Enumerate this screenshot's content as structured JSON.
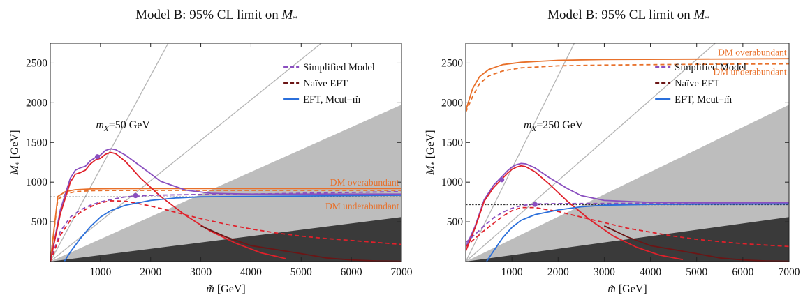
{
  "chart_data": [
    {
      "type": "line",
      "title": "Model B: 95% CL limit on M*",
      "xlabel": "m̃ [GeV]",
      "ylabel": "M* [GeV]",
      "xlim": [
        0,
        7000
      ],
      "ylim": [
        0,
        2750
      ],
      "xticks": [
        "1000",
        "2000",
        "3000",
        "4000",
        "5000",
        "6000",
        "7000"
      ],
      "yticks": [
        "500",
        "1000",
        "1500",
        "2000",
        "2500"
      ],
      "annotation": "mX=50 GeV",
      "legend_position": "top-right",
      "legend": [
        {
          "label": "Simplified Model",
          "color": "#8a4fbf",
          "style": "dashed"
        },
        {
          "label": "Naïve EFT",
          "color": "#6b1515",
          "style": "dashed"
        },
        {
          "label": "EFT, Mcut=m̃",
          "color": "#2a6fdb",
          "style": "solid"
        }
      ],
      "dm_labels": [
        "DM overabundant",
        "DM underabundant"
      ],
      "colors": {
        "purple": "#8a4fbf",
        "red": "#e0202a",
        "darkred": "#6b1515",
        "blue": "#2a6fdb",
        "orange": "#e8702a",
        "grey": "#bdbdbd",
        "dark": "#3a3a3a"
      },
      "grey_region": {
        "x": [
          0,
          7000
        ],
        "y_upper": [
          0,
          1975
        ]
      },
      "dark_region": {
        "x": [
          0,
          7000
        ],
        "y_upper": [
          0,
          560
        ]
      },
      "guide_lines": [
        {
          "x": [
            0,
            2350
          ],
          "y": [
            0,
            2750
          ]
        },
        {
          "x": [
            0,
            5400
          ],
          "y": [
            0,
            2750
          ]
        }
      ],
      "naive_eft_line": 815,
      "series": [
        {
          "key": "orange_solid",
          "color": "#e8702a",
          "dash": false,
          "x": [
            0,
            150,
            300,
            500,
            800,
            1200,
            2000,
            4000,
            7000
          ],
          "y": [
            0,
            820,
            880,
            905,
            915,
            918,
            920,
            920,
            920
          ]
        },
        {
          "key": "orange_dashed",
          "color": "#e8702a",
          "dash": true,
          "x": [
            0,
            150,
            300,
            500,
            800,
            1200,
            2000,
            4000,
            7000
          ],
          "y": [
            0,
            780,
            850,
            880,
            892,
            895,
            896,
            896,
            896
          ]
        },
        {
          "key": "purple_solid",
          "color": "#8a4fbf",
          "dash": false,
          "x": [
            0,
            200,
            400,
            500,
            600,
            700,
            800,
            900,
            1000,
            1100,
            1200,
            1300,
            1500,
            1800,
            2200,
            2700,
            3200,
            4000,
            5000,
            7000
          ],
          "y": [
            0,
            650,
            1050,
            1150,
            1180,
            1200,
            1270,
            1310,
            1340,
            1400,
            1420,
            1410,
            1340,
            1200,
            1010,
            900,
            860,
            850,
            850,
            850
          ]
        },
        {
          "key": "red_solid",
          "color": "#e0202a",
          "dash": false,
          "x": [
            0,
            200,
            400,
            500,
            600,
            700,
            800,
            900,
            1000,
            1100,
            1200,
            1300,
            1500,
            1800,
            2200,
            2700,
            3200,
            3700,
            4200,
            4700
          ],
          "y": [
            0,
            600,
            1000,
            1100,
            1120,
            1150,
            1230,
            1280,
            1300,
            1350,
            1375,
            1360,
            1260,
            1050,
            820,
            580,
            380,
            230,
            110,
            35
          ]
        },
        {
          "key": "darkred_solid",
          "color": "#6b1515",
          "dash": false,
          "x": [
            3000,
            3500,
            4000,
            4500,
            5000,
            5500,
            6000,
            6500,
            7000
          ],
          "y": [
            450,
            310,
            200,
            150,
            100,
            45,
            20,
            8,
            3
          ]
        },
        {
          "key": "purple_dashed",
          "color": "#8a4fbf",
          "dash": true,
          "x": [
            0,
            200,
            400,
            600,
            800,
            1000,
            1200,
            1500,
            2000,
            2500,
            3000,
            4000,
            5000,
            7000
          ],
          "y": [
            0,
            380,
            560,
            650,
            710,
            750,
            780,
            815,
            835,
            840,
            845,
            850,
            860,
            880
          ]
        },
        {
          "key": "red_dashed",
          "color": "#e0202a",
          "dash": true,
          "x": [
            0,
            200,
            400,
            600,
            800,
            1000,
            1200,
            1500,
            2000,
            2500,
            3000,
            3500,
            4000,
            4500,
            5000,
            5500,
            6000,
            7000
          ],
          "y": [
            0,
            330,
            520,
            620,
            690,
            740,
            765,
            760,
            700,
            620,
            540,
            470,
            410,
            360,
            320,
            290,
            265,
            215
          ]
        },
        {
          "key": "blue_solid",
          "color": "#2a6fdb",
          "dash": false,
          "x": [
            280,
            400,
            600,
            800,
            1000,
            1200,
            1500,
            2000,
            2500,
            3000,
            4000,
            5000,
            7000
          ],
          "y": [
            0,
            120,
            290,
            440,
            560,
            640,
            710,
            770,
            800,
            815,
            820,
            825,
            835
          ]
        }
      ],
      "markers": [
        {
          "x": 940,
          "y": 1320,
          "color": "#8a4fbf"
        },
        {
          "x": 1700,
          "y": 830,
          "color": "#8a4fbf"
        }
      ]
    },
    {
      "type": "line",
      "title": "Model B: 95% CL limit on M*",
      "xlabel": "m̃ [GeV]",
      "ylabel": "M* [GeV]",
      "xlim": [
        0,
        7000
      ],
      "ylim": [
        0,
        2750
      ],
      "xticks": [
        "1000",
        "2000",
        "3000",
        "4000",
        "5000",
        "6000",
        "7000"
      ],
      "yticks": [
        "500",
        "1000",
        "1500",
        "2000",
        "2500"
      ],
      "annotation": "mX=250 GeV",
      "legend_position": "top-right",
      "legend": [
        {
          "label": "Simplified Model",
          "color": "#8a4fbf",
          "style": "dashed"
        },
        {
          "label": "Naïve EFT",
          "color": "#6b1515",
          "style": "dashed"
        },
        {
          "label": "EFT, Mcut=m̃",
          "color": "#2a6fdb",
          "style": "solid"
        }
      ],
      "dm_labels": [
        "DM overabundant",
        "DM underabundant"
      ],
      "colors": {
        "purple": "#8a4fbf",
        "red": "#e0202a",
        "darkred": "#6b1515",
        "blue": "#2a6fdb",
        "orange": "#e8702a",
        "grey": "#bdbdbd",
        "dark": "#3a3a3a"
      },
      "grey_region": {
        "x": [
          0,
          7000
        ],
        "y_upper": [
          0,
          1975
        ]
      },
      "dark_region": {
        "x": [
          0,
          7000
        ],
        "y_upper": [
          0,
          560
        ]
      },
      "guide_lines": [
        {
          "x": [
            0,
            2350
          ],
          "y": [
            0,
            2750
          ]
        },
        {
          "x": [
            0,
            5400
          ],
          "y": [
            0,
            2750
          ]
        }
      ],
      "naive_eft_line": 715,
      "series": [
        {
          "key": "orange_solid",
          "color": "#e8702a",
          "dash": false,
          "x": [
            0,
            150,
            300,
            500,
            800,
            1200,
            2000,
            3000,
            5000,
            7000
          ],
          "y": [
            1900,
            2180,
            2330,
            2420,
            2480,
            2510,
            2535,
            2545,
            2550,
            2555
          ]
        },
        {
          "key": "orange_dashed",
          "color": "#e8702a",
          "dash": true,
          "x": [
            0,
            150,
            300,
            500,
            800,
            1200,
            2000,
            3000,
            5000,
            7000
          ],
          "y": [
            1880,
            2080,
            2240,
            2340,
            2400,
            2440,
            2465,
            2475,
            2485,
            2490
          ]
        },
        {
          "key": "purple_solid",
          "color": "#8a4fbf",
          "dash": false,
          "x": [
            0,
            200,
            400,
            600,
            700,
            800,
            900,
            1000,
            1100,
            1200,
            1300,
            1500,
            1800,
            2200,
            2500,
            3000,
            4000,
            5000,
            7000
          ],
          "y": [
            180,
            440,
            780,
            960,
            1020,
            1080,
            1140,
            1190,
            1220,
            1235,
            1230,
            1180,
            1060,
            920,
            830,
            770,
            745,
            740,
            740
          ]
        },
        {
          "key": "red_solid",
          "color": "#e0202a",
          "dash": false,
          "x": [
            0,
            200,
            400,
            600,
            700,
            800,
            900,
            1000,
            1100,
            1200,
            1300,
            1500,
            1800,
            2200,
            2700,
            3200,
            3700,
            4200,
            4700
          ],
          "y": [
            130,
            420,
            760,
            930,
            990,
            1050,
            1110,
            1160,
            1190,
            1205,
            1195,
            1130,
            980,
            760,
            520,
            320,
            180,
            80,
            25
          ]
        },
        {
          "key": "darkred_solid",
          "color": "#6b1515",
          "dash": false,
          "x": [
            3000,
            3500,
            4000,
            4500,
            5000,
            5500,
            6000,
            6500,
            7000
          ],
          "y": [
            450,
            310,
            200,
            150,
            100,
            45,
            20,
            8,
            3
          ]
        },
        {
          "key": "purple_dashed",
          "color": "#8a4fbf",
          "dash": true,
          "x": [
            0,
            200,
            400,
            600,
            800,
            1000,
            1200,
            1500,
            2000,
            3000,
            4000,
            5000,
            7000
          ],
          "y": [
            240,
            340,
            450,
            550,
            620,
            670,
            705,
            725,
            730,
            732,
            735,
            738,
            742
          ]
        },
        {
          "key": "red_dashed",
          "color": "#e0202a",
          "dash": true,
          "x": [
            0,
            200,
            400,
            600,
            800,
            1000,
            1200,
            1500,
            2000,
            2500,
            3000,
            3500,
            4000,
            4500,
            5000,
            5500,
            6000,
            7000
          ],
          "y": [
            190,
            290,
            390,
            480,
            570,
            640,
            680,
            680,
            630,
            560,
            490,
            420,
            370,
            320,
            280,
            250,
            225,
            190
          ]
        },
        {
          "key": "blue_solid",
          "color": "#2a6fdb",
          "dash": false,
          "x": [
            450,
            600,
            800,
            1000,
            1200,
            1500,
            2000,
            2500,
            3000,
            4000,
            5000,
            7000
          ],
          "y": [
            0,
            130,
            300,
            430,
            520,
            590,
            650,
            690,
            710,
            720,
            722,
            725
          ]
        }
      ],
      "markers": [
        {
          "x": 780,
          "y": 1030,
          "color": "#8a4fbf"
        },
        {
          "x": 1500,
          "y": 720,
          "color": "#8a4fbf"
        }
      ]
    }
  ]
}
